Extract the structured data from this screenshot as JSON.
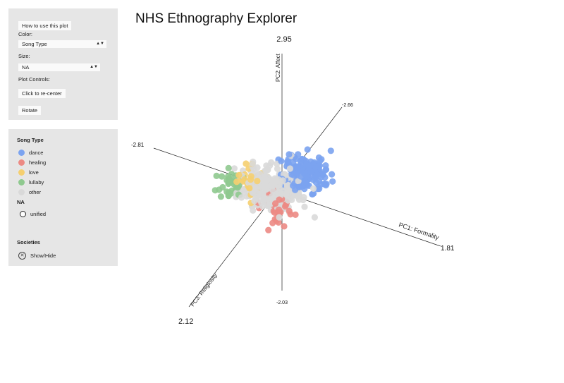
{
  "title": "NHS Ethnography Explorer",
  "controls": {
    "how_to_label": "How to use this plot",
    "color_label": "Color:",
    "color_value": "Song Type",
    "size_label": "Size:",
    "size_value": "NA",
    "plot_controls_label": "Plot Controls:",
    "recenter_label": "Click to re-center",
    "rotate_label": "Rotate"
  },
  "legend": {
    "song_type_title": "Song Type",
    "song_types": [
      {
        "label": "dance",
        "color": "#7ba3f0"
      },
      {
        "label": "healing",
        "color": "#ec8a84"
      },
      {
        "label": "love",
        "color": "#f5cf70"
      },
      {
        "label": "lullaby",
        "color": "#8fc98f"
      },
      {
        "label": "other",
        "color": "#d9d9d9"
      }
    ],
    "size_title": "NA",
    "size_item": "unified",
    "societies_title": "Societies",
    "show_hide_label": "Show/Hide"
  },
  "axes": {
    "pc1_label": "PC1: Formality",
    "pc1_max": "1.81",
    "pc1_min": "-2.81",
    "pc2_label": "PC2: Affect",
    "pc2_max": "2.95",
    "pc2_min": "-2.03",
    "pc3_label": "PC3: Religiosity",
    "pc3_max": "2.12",
    "pc3_min": "-2.66"
  },
  "points": {
    "count": 600,
    "seed": 7
  }
}
